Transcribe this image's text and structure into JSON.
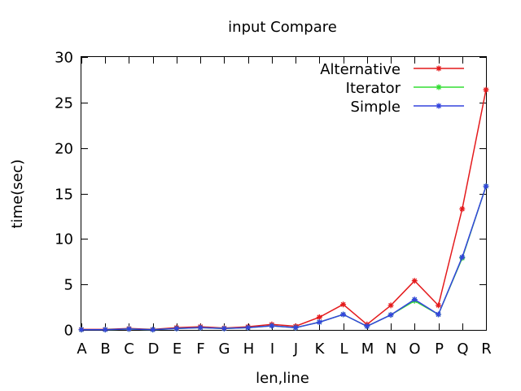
{
  "chart_data": {
    "type": "line",
    "title": "input Compare",
    "xlabel": "len,line",
    "ylabel": "time(sec)",
    "categories": [
      "A",
      "B",
      "C",
      "D",
      "E",
      "F",
      "G",
      "H",
      "I",
      "J",
      "K",
      "L",
      "M",
      "N",
      "O",
      "P",
      "Q",
      "R"
    ],
    "ylim": [
      0,
      30
    ],
    "yticks": [
      0,
      5,
      10,
      15,
      20,
      25,
      30
    ],
    "grid": false,
    "legend_position": "top-right",
    "series": [
      {
        "name": "Alternative",
        "color": "#e41a1c",
        "values": [
          0.05,
          0.05,
          0.15,
          0.05,
          0.25,
          0.35,
          0.2,
          0.35,
          0.6,
          0.4,
          1.4,
          2.8,
          0.6,
          2.7,
          5.4,
          2.7,
          13.3,
          26.4
        ]
      },
      {
        "name": "Iterator",
        "color": "#33dd33",
        "values": [
          0.03,
          0.03,
          0.1,
          0.03,
          0.15,
          0.25,
          0.15,
          0.25,
          0.45,
          0.25,
          0.85,
          1.7,
          0.4,
          1.65,
          3.2,
          1.7,
          7.9,
          15.8
        ]
      },
      {
        "name": "Simple",
        "color": "#3344dd",
        "values": [
          0.03,
          0.03,
          0.1,
          0.03,
          0.15,
          0.25,
          0.15,
          0.25,
          0.45,
          0.25,
          0.85,
          1.7,
          0.4,
          1.65,
          3.35,
          1.7,
          8.0,
          15.8
        ]
      }
    ]
  }
}
